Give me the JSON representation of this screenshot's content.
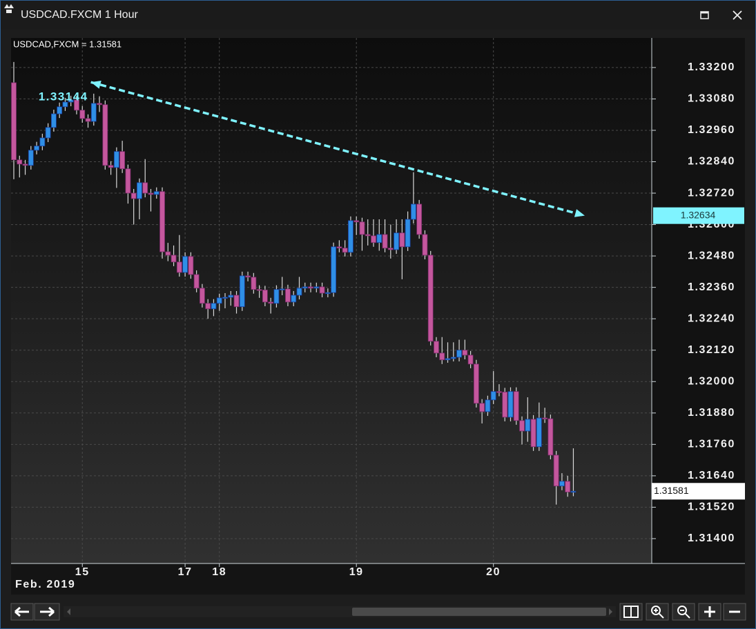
{
  "window": {
    "title": "USDCAD.FXCM 1 Hour"
  },
  "chart_data": {
    "type": "candlestick",
    "header": "USDCAD,FXCM = 1.31581",
    "x_label": "Feb. 2019",
    "categories": [
      null,
      null,
      null,
      null,
      null,
      null,
      null,
      null,
      null,
      null,
      null,
      null,
      "15",
      null,
      null,
      null,
      null,
      null,
      null,
      null,
      null,
      null,
      null,
      null,
      null,
      null,
      null,
      null,
      null,
      null,
      "17",
      null,
      null,
      null,
      null,
      null,
      "18",
      null,
      null,
      null,
      null,
      null,
      null,
      null,
      null,
      null,
      null,
      null,
      null,
      null,
      null,
      null,
      null,
      null,
      null,
      null,
      null,
      null,
      null,
      null,
      "19",
      null,
      null,
      null,
      null,
      null,
      null,
      null,
      null,
      null,
      null,
      null,
      null,
      null,
      null,
      null,
      null,
      null,
      null,
      null,
      null,
      null,
      null,
      null,
      "20",
      null,
      null,
      null,
      null,
      null,
      null,
      null,
      null,
      null,
      null,
      null,
      null,
      null,
      null
    ],
    "open": [
      1.33142,
      1.32847,
      1.32831,
      1.32826,
      1.32884,
      1.329,
      1.32931,
      1.32971,
      1.33023,
      1.3305,
      1.33068,
      1.33076,
      1.33037,
      1.33005,
      1.32994,
      1.33063,
      1.33058,
      1.32826,
      1.32818,
      1.32879,
      1.32813,
      1.3272,
      1.32699,
      1.3276,
      1.3272,
      1.32715,
      1.32726,
      1.32496,
      1.32483,
      1.32457,
      1.32417,
      1.32478,
      1.32409,
      1.32357,
      1.32299,
      1.32278,
      1.32299,
      1.3232,
      1.32322,
      1.3233,
      1.32286,
      1.32404,
      1.32399,
      1.32352,
      1.3235,
      1.32304,
      1.32299,
      1.32352,
      1.32354,
      1.32304,
      1.3233,
      1.32357,
      1.32362,
      1.32357,
      1.32362,
      1.32338,
      1.3234,
      1.32515,
      1.3251,
      1.32494,
      1.32615,
      1.3261,
      1.32562,
      1.32557,
      1.32531,
      1.32562,
      1.3251,
      1.32504,
      1.32568,
      1.32515,
      1.3262,
      1.32678,
      1.32562,
      1.32483,
      1.32154,
      1.32109,
      1.32083,
      1.32088,
      1.32093,
      1.3212,
      1.32101,
      1.32067,
      1.31917,
      1.31885,
      1.3193,
      1.31962,
      1.3196,
      1.31864,
      1.31962,
      1.31851,
      1.31811,
      1.31856,
      1.31751,
      1.31861,
      1.31858,
      1.31719,
      1.31601,
      1.31619,
      1.31578
    ],
    "high": [
      1.33221,
      1.32863,
      1.32847,
      1.329,
      1.32916,
      1.32947,
      1.32987,
      1.33039,
      1.33066,
      1.33084,
      1.33092,
      1.33092,
      1.33053,
      1.33021,
      1.331,
      1.3309,
      1.33074,
      1.32842,
      1.32895,
      1.3292,
      1.32829,
      1.32736,
      1.32776,
      1.3285,
      1.32736,
      1.32742,
      1.32742,
      1.3253,
      1.3252,
      1.3256,
      1.32494,
      1.32494,
      1.32425,
      1.32373,
      1.32315,
      1.32315,
      1.32336,
      1.32338,
      1.32346,
      1.32346,
      1.3242,
      1.3242,
      1.32415,
      1.32368,
      1.32366,
      1.3232,
      1.32368,
      1.324,
      1.3237,
      1.32346,
      1.324,
      1.32378,
      1.32378,
      1.32378,
      1.32378,
      1.32356,
      1.32531,
      1.3254,
      1.3254,
      1.32631,
      1.32631,
      1.32626,
      1.3262,
      1.3262,
      1.3262,
      1.3262,
      1.326,
      1.3262,
      1.3262,
      1.3265,
      1.328,
      1.32694,
      1.32578,
      1.32499,
      1.3217,
      1.3217,
      1.3215,
      1.3215,
      1.3216,
      1.3216,
      1.32117,
      1.32083,
      1.31933,
      1.31946,
      1.3204,
      1.3199,
      1.31976,
      1.31978,
      1.31978,
      1.31867,
      1.3194,
      1.31872,
      1.3192,
      1.319,
      1.31874,
      1.31735,
      1.3165,
      1.3164,
      1.31745
    ],
    "low": [
      1.32773,
      1.3278,
      1.3279,
      1.3281,
      1.32868,
      1.32884,
      1.32915,
      1.32955,
      1.33007,
      1.33034,
      1.33052,
      1.33021,
      1.32989,
      1.3297,
      1.32978,
      1.3303,
      1.3281,
      1.3279,
      1.3274,
      1.32797,
      1.3268,
      1.326,
      1.3262,
      1.32704,
      1.3265,
      1.32699,
      1.3247,
      1.3246,
      1.32441,
      1.32401,
      1.32401,
      1.32393,
      1.32341,
      1.32283,
      1.3224,
      1.3225,
      1.3227,
      1.3228,
      1.3229,
      1.3226,
      1.3227,
      1.32383,
      1.32336,
      1.3232,
      1.32288,
      1.3226,
      1.32283,
      1.3233,
      1.32288,
      1.32288,
      1.32314,
      1.32341,
      1.32341,
      1.32341,
      1.32322,
      1.32322,
      1.32324,
      1.32494,
      1.32478,
      1.32478,
      1.3256,
      1.325,
      1.3252,
      1.32515,
      1.325,
      1.32494,
      1.3247,
      1.32488,
      1.32391,
      1.32499,
      1.32604,
      1.32546,
      1.32467,
      1.32138,
      1.32093,
      1.32067,
      1.32072,
      1.32077,
      1.32077,
      1.32085,
      1.32051,
      1.31901,
      1.3184,
      1.31869,
      1.31914,
      1.31944,
      1.31848,
      1.31848,
      1.31835,
      1.3176,
      1.3177,
      1.31735,
      1.31735,
      1.31842,
      1.31703,
      1.3153,
      1.31585,
      1.3156,
      1.31562
    ],
    "close": [
      1.32847,
      1.32831,
      1.32826,
      1.32884,
      1.329,
      1.32931,
      1.32971,
      1.33023,
      1.3305,
      1.33068,
      1.33076,
      1.33037,
      1.33005,
      1.32994,
      1.33063,
      1.33058,
      1.32826,
      1.32818,
      1.32879,
      1.32813,
      1.3272,
      1.32699,
      1.3276,
      1.3272,
      1.32715,
      1.32726,
      1.32496,
      1.32483,
      1.32457,
      1.32417,
      1.32478,
      1.32409,
      1.32357,
      1.32299,
      1.32278,
      1.32299,
      1.3232,
      1.32322,
      1.3233,
      1.32286,
      1.32404,
      1.32399,
      1.32352,
      1.3235,
      1.32304,
      1.32299,
      1.32352,
      1.32354,
      1.32304,
      1.3233,
      1.32357,
      1.32362,
      1.32357,
      1.32362,
      1.32338,
      1.3234,
      1.32515,
      1.3251,
      1.32494,
      1.32615,
      1.3261,
      1.32562,
      1.32557,
      1.32531,
      1.32562,
      1.3251,
      1.32504,
      1.32568,
      1.32515,
      1.3262,
      1.32678,
      1.32562,
      1.32483,
      1.32154,
      1.32109,
      1.32083,
      1.32088,
      1.32093,
      1.3212,
      1.32101,
      1.32067,
      1.31917,
      1.31885,
      1.3193,
      1.31962,
      1.3196,
      1.31864,
      1.31962,
      1.31851,
      1.31811,
      1.31856,
      1.31751,
      1.31861,
      1.31858,
      1.31719,
      1.31601,
      1.31619,
      1.31578,
      1.31581
    ],
    "up_color": "#2f8fe6",
    "down_color": "#c4579d",
    "ylim": [
      1.31305,
      1.33313
    ],
    "yticks": [
      {
        "value": 1.332,
        "label": "1.33200"
      },
      {
        "value": 1.3308,
        "label": "1.33080"
      },
      {
        "value": 1.3296,
        "label": "1.32960"
      },
      {
        "value": 1.3284,
        "label": "1.32840"
      },
      {
        "value": 1.3272,
        "label": "1.32720"
      },
      {
        "value": 1.326,
        "label": "1.32600"
      },
      {
        "value": 1.3248,
        "label": "1.32480"
      },
      {
        "value": 1.3236,
        "label": "1.32360"
      },
      {
        "value": 1.3224,
        "label": "1.32240"
      },
      {
        "value": 1.3212,
        "label": "1.32120"
      },
      {
        "value": 1.32,
        "label": "1.32000"
      },
      {
        "value": 1.3188,
        "label": "1.31880"
      },
      {
        "value": 1.3176,
        "label": "1.31760"
      },
      {
        "value": 1.3164,
        "label": "1.31640"
      },
      {
        "value": 1.3152,
        "label": "1.31520"
      },
      {
        "value": 1.314,
        "label": "1.31400"
      }
    ],
    "grid": true,
    "trendline": {
      "x": [
        13.5,
        100
      ],
      "values": [
        1.33144,
        1.32634
      ],
      "value_labels": [
        "1.33144",
        "1.32634"
      ],
      "color": "#7ff3ff"
    },
    "last_price": {
      "value": 1.31581,
      "label": "1.31581"
    }
  }
}
